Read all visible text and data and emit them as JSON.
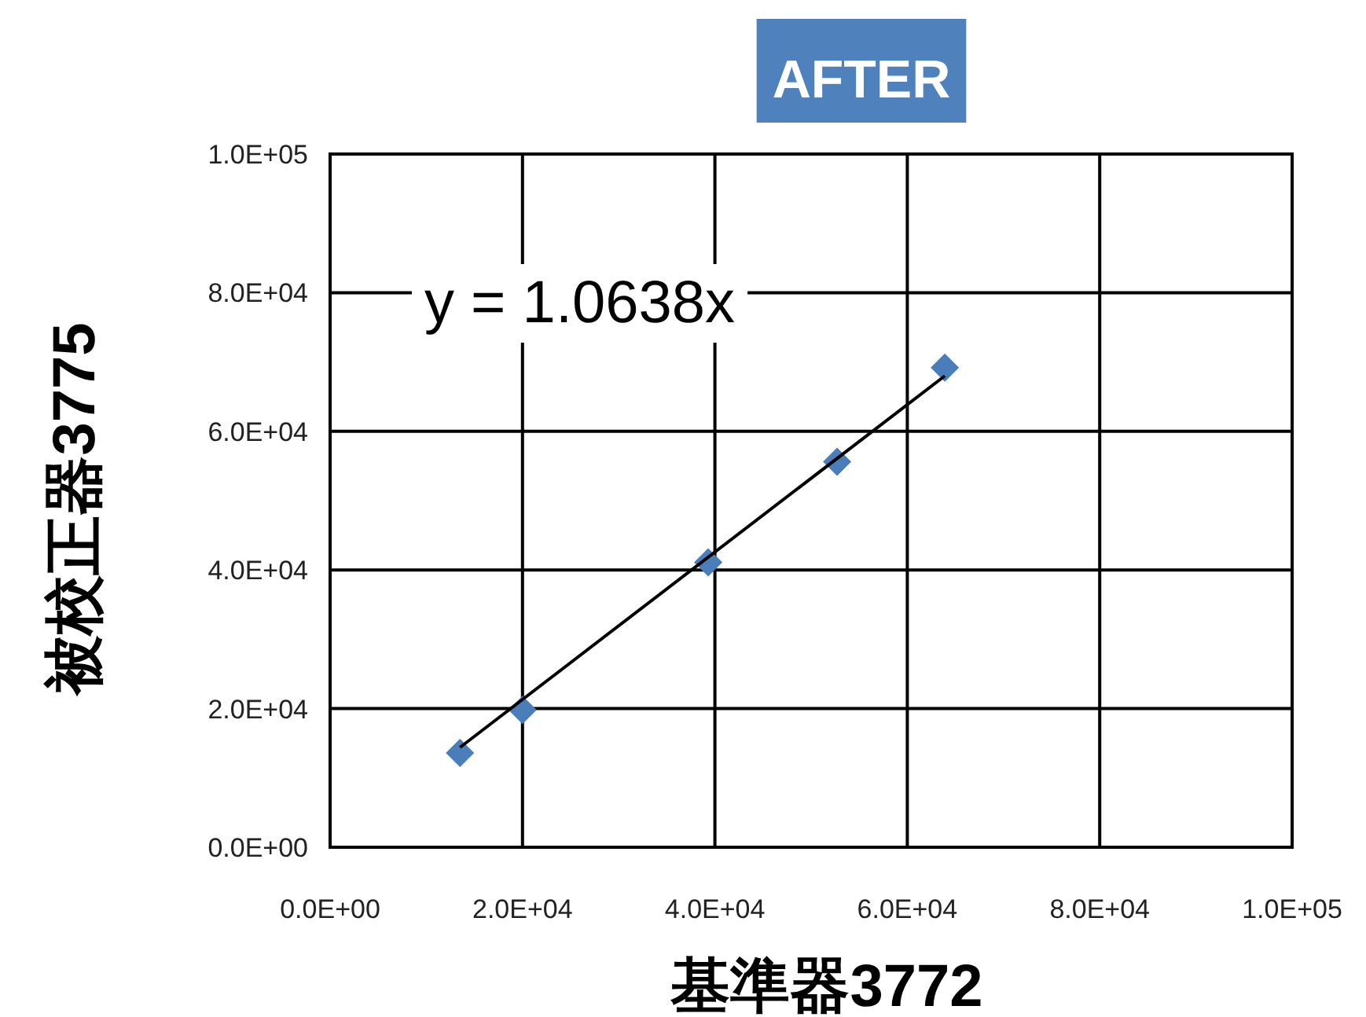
{
  "chart_data": {
    "type": "scatter",
    "title": "AFTER",
    "xlabel": "基準器3772",
    "ylabel": "被校正器3775",
    "annotations": [
      "y = 1.0638x"
    ],
    "x": [
      13500,
      20000,
      39300,
      52700,
      63900
    ],
    "series": [
      {
        "type": "scatter",
        "color": "#4a7ebb",
        "marker": "diamond",
        "values": [
          13600,
          19800,
          41100,
          55600,
          69200
        ]
      },
      {
        "type": "line",
        "color": "#000000",
        "marker": "none",
        "line_style": "solid",
        "x": [
          13500,
          63900
        ],
        "values": [
          14400,
          68000
        ]
      }
    ],
    "xlim": [
      0,
      100000
    ],
    "ylim": [
      0,
      100000
    ],
    "xticks": [
      {
        "value": 0,
        "label": "0.0E+00"
      },
      {
        "value": 20000,
        "label": "2.0E+04"
      },
      {
        "value": 40000,
        "label": "4.0E+04"
      },
      {
        "value": 60000,
        "label": "6.0E+04"
      },
      {
        "value": 80000,
        "label": "8.0E+04"
      },
      {
        "value": 100000,
        "label": "1.0E+05"
      }
    ],
    "yticks": [
      {
        "value": 0,
        "label": "0.0E+00"
      },
      {
        "value": 20000,
        "label": "2.0E+04"
      },
      {
        "value": 40000,
        "label": "4.0E+04"
      },
      {
        "value": 60000,
        "label": "6.0E+04"
      },
      {
        "value": 80000,
        "label": "8.0E+04"
      },
      {
        "value": 100000,
        "label": "1.0E+05"
      }
    ],
    "grid": true
  }
}
